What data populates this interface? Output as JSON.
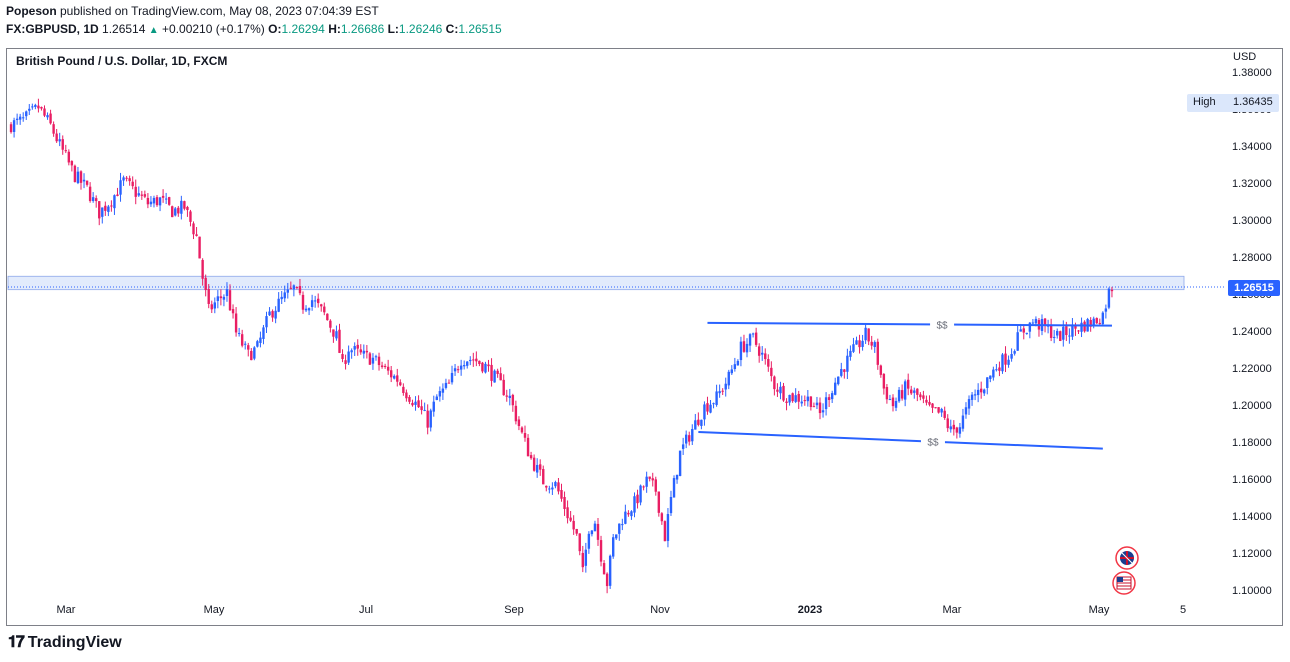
{
  "header": {
    "publisher": "Popeson",
    "published_text": " published on TradingView.com, May 08, 2023 07:04:39 EST",
    "symbol": "FX:GBPUSD, 1D",
    "last": "1.26514",
    "change": "+0.00210 (+0.17%)",
    "o_label": "O:",
    "o_value": "1.26294",
    "h_label": "H:",
    "h_value": "1.26686",
    "l_label": "L:",
    "l_value": "1.26246",
    "c_label": "C:",
    "c_value": "1.26515"
  },
  "chart_data": {
    "type": "candlestick",
    "title": "British Pound / U.S. Dollar, 1D, FXCM",
    "currency": "USD",
    "ylim": [
      1.095,
      1.39
    ],
    "y_ticks": [
      "1.38000",
      "1.36000",
      "1.34000",
      "1.32000",
      "1.30000",
      "1.28000",
      "1.26000",
      "1.24000",
      "1.22000",
      "1.20000",
      "1.18000",
      "1.16000",
      "1.14000",
      "1.12000",
      "1.10000"
    ],
    "x_ticks": [
      "Mar",
      "May",
      "Jul",
      "Sep",
      "Nov",
      "2023",
      "Mar",
      "May",
      "5"
    ],
    "high_label": "High",
    "high_value": "1.36435",
    "current_price": "1.26515",
    "resistance_zone": [
      1.2645,
      1.2685
    ],
    "path_points": [
      [
        0,
        1.352
      ],
      [
        5,
        1.355
      ],
      [
        10,
        1.362
      ],
      [
        14,
        1.352
      ],
      [
        18,
        1.338
      ],
      [
        22,
        1.325
      ],
      [
        26,
        1.318
      ],
      [
        30,
        1.305
      ],
      [
        34,
        1.312
      ],
      [
        38,
        1.322
      ],
      [
        42,
        1.316
      ],
      [
        46,
        1.31
      ],
      [
        50,
        1.312
      ],
      [
        54,
        1.306
      ],
      [
        58,
        1.308
      ],
      [
        62,
        1.292
      ],
      [
        64,
        1.27
      ],
      [
        66,
        1.252
      ],
      [
        69,
        1.258
      ],
      [
        72,
        1.262
      ],
      [
        75,
        1.24
      ],
      [
        79,
        1.228
      ],
      [
        82,
        1.232
      ],
      [
        86,
        1.25
      ],
      [
        90,
        1.258
      ],
      [
        94,
        1.264
      ],
      [
        97,
        1.255
      ],
      [
        100,
        1.258
      ],
      [
        104,
        1.25
      ],
      [
        108,
        1.238
      ],
      [
        110,
        1.222
      ],
      [
        112,
        1.232
      ],
      [
        116,
        1.228
      ],
      [
        120,
        1.226
      ],
      [
        124,
        1.22
      ],
      [
        128,
        1.215
      ],
      [
        131,
        1.208
      ],
      [
        135,
        1.2
      ],
      [
        138,
        1.192
      ],
      [
        141,
        1.205
      ],
      [
        145,
        1.212
      ],
      [
        149,
        1.226
      ],
      [
        153,
        1.226
      ],
      [
        157,
        1.222
      ],
      [
        161,
        1.214
      ],
      [
        165,
        1.205
      ],
      [
        169,
        1.185
      ],
      [
        172,
        1.172
      ],
      [
        176,
        1.16
      ],
      [
        180,
        1.158
      ],
      [
        184,
        1.142
      ],
      [
        187,
        1.13
      ],
      [
        189,
        1.11
      ],
      [
        191,
        1.135
      ],
      [
        193,
        1.138
      ],
      [
        195,
        1.12
      ],
      [
        197,
        1.105
      ],
      [
        199,
        1.128
      ],
      [
        202,
        1.14
      ],
      [
        206,
        1.148
      ],
      [
        210,
        1.16
      ],
      [
        213,
        1.155
      ],
      [
        216,
        1.13
      ],
      [
        218,
        1.15
      ],
      [
        221,
        1.175
      ],
      [
        225,
        1.188
      ],
      [
        229,
        1.2
      ],
      [
        233,
        1.205
      ],
      [
        237,
        1.216
      ],
      [
        241,
        1.232
      ],
      [
        245,
        1.237
      ],
      [
        248,
        1.228
      ],
      [
        252,
        1.212
      ],
      [
        256,
        1.206
      ],
      [
        260,
        1.205
      ],
      [
        264,
        1.204
      ],
      [
        267,
        1.196
      ],
      [
        270,
        1.207
      ],
      [
        274,
        1.22
      ],
      [
        278,
        1.23
      ],
      [
        282,
        1.239
      ],
      [
        285,
        1.232
      ],
      [
        288,
        1.21
      ],
      [
        291,
        1.201
      ],
      [
        295,
        1.21
      ],
      [
        299,
        1.206
      ],
      [
        303,
        1.198
      ],
      [
        307,
        1.196
      ],
      [
        310,
        1.187
      ],
      [
        313,
        1.19
      ],
      [
        317,
        1.205
      ],
      [
        321,
        1.212
      ],
      [
        325,
        1.222
      ],
      [
        329,
        1.228
      ],
      [
        333,
        1.24
      ],
      [
        337,
        1.246
      ],
      [
        341,
        1.243
      ],
      [
        345,
        1.238
      ],
      [
        349,
        1.241
      ],
      [
        353,
        1.244
      ],
      [
        357,
        1.246
      ],
      [
        360,
        1.25
      ],
      [
        362,
        1.262
      ],
      [
        363,
        1.265
      ]
    ],
    "lines": [
      {
        "label": "$$",
        "from": [
          230,
          1.2455
        ],
        "to": [
          363,
          1.244
        ]
      },
      {
        "label": "$$",
        "from": [
          227,
          1.1865
        ],
        "to": [
          360,
          1.1775
        ]
      }
    ]
  },
  "flags": [
    "gb-flag-icon",
    "us-flag-icon"
  ],
  "brand": {
    "name": "TradingView"
  },
  "colors": {
    "up": "#2962ff",
    "down": "#e91e63",
    "accent": "#2962ff"
  }
}
